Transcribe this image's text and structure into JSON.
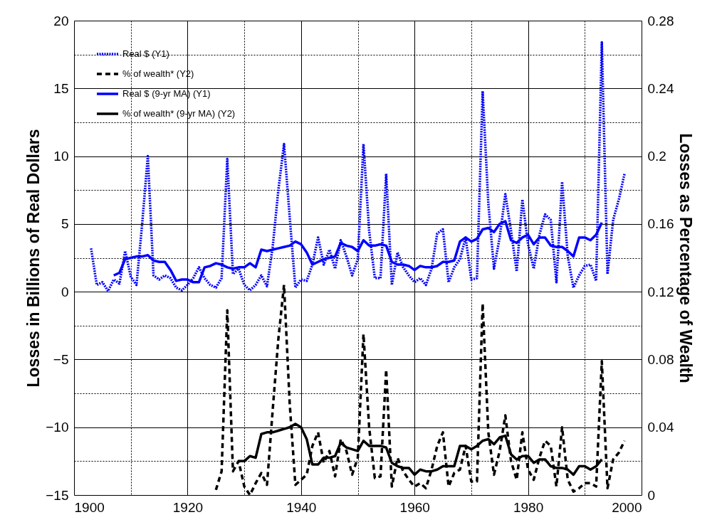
{
  "chart_data": {
    "type": "line",
    "ylabel": "Losses in Billions of Real Dollars",
    "y2label": "Losses as Percentage of Wealth",
    "xlim": [
      1900,
      2000
    ],
    "xticks": [
      1900,
      {
        "value": 1910,
        "label": null
      },
      1920,
      {
        "value": 1930,
        "label": null
      },
      1940,
      {
        "value": 1950,
        "label": null
      },
      1960,
      {
        "value": 1970,
        "label": null
      },
      1980,
      {
        "value": 1990,
        "label": null
      },
      2000
    ],
    "ylim": [
      -15,
      20
    ],
    "yticks": [
      -15,
      {
        "value": -12.5,
        "label": null
      },
      -10,
      {
        "value": -7.5,
        "label": null
      },
      -5,
      {
        "value": -2.5,
        "label": null
      },
      0,
      {
        "value": 2.5,
        "label": null
      },
      5,
      {
        "value": 7.5,
        "label": null
      },
      10,
      {
        "value": 12.5,
        "label": null
      },
      15,
      {
        "value": 17.5,
        "label": null
      },
      20
    ],
    "y2lim": [
      0,
      0.28
    ],
    "y2ticks": [
      0,
      0.04,
      0.08,
      0.12,
      0.16,
      0.2,
      0.24,
      0.28
    ],
    "grid": true,
    "legend": "top left",
    "series": [
      {
        "name": "Real $ (Y1)",
        "color": "#0000ff",
        "line_style": "dotted",
        "x": [
          1903,
          1904,
          1905,
          1906,
          1907,
          1908,
          1909,
          1910,
          1911,
          1912,
          1913,
          1914,
          1915,
          1916,
          1917,
          1918,
          1919,
          1920,
          1921,
          1922,
          1923,
          1924,
          1925,
          1926,
          1927,
          1928,
          1929,
          1930,
          1931,
          1932,
          1933,
          1934,
          1935,
          1936,
          1937,
          1938,
          1939,
          1940,
          1941,
          1942,
          1943,
          1944,
          1945,
          1946,
          1947,
          1948,
          1949,
          1950,
          1951,
          1952,
          1953,
          1954,
          1955,
          1956,
          1957,
          1958,
          1959,
          1960,
          1961,
          1962,
          1963,
          1964,
          1965,
          1966,
          1967,
          1968,
          1969,
          1970,
          1971,
          1972,
          1973,
          1974,
          1975,
          1976,
          1977,
          1978,
          1979,
          1980,
          1981,
          1982,
          1983,
          1984,
          1985,
          1986,
          1987,
          1988,
          1989,
          1990,
          1991,
          1992,
          1993,
          1994,
          1995,
          1996,
          1997
        ],
        "values": [
          3.2,
          0.5,
          0.7,
          0.05,
          0.9,
          0.6,
          3.0,
          1.1,
          0.5,
          5.0,
          10.0,
          1.2,
          0.9,
          1.2,
          1.0,
          0.3,
          0.1,
          0.5,
          1.0,
          1.8,
          1.0,
          0.5,
          0.3,
          1.0,
          9.8,
          1.3,
          1.7,
          0.5,
          0.1,
          0.5,
          1.2,
          0.4,
          3.3,
          7.5,
          10.9,
          5.5,
          0.3,
          0.9,
          0.8,
          2.0,
          4.0,
          2.0,
          3.1,
          1.7,
          3.8,
          2.6,
          1.2,
          2.4,
          10.9,
          4.5,
          1.0,
          1.0,
          8.7,
          0.5,
          2.9,
          1.8,
          1.2,
          0.7,
          1.0,
          0.5,
          1.7,
          4.3,
          4.6,
          0.7,
          1.8,
          2.4,
          4.0,
          0.9,
          1.0,
          14.8,
          6.5,
          1.7,
          4.0,
          7.2,
          4.5,
          1.5,
          6.8,
          3.5,
          1.7,
          4.2,
          5.7,
          5.3,
          0.7,
          8.1,
          2.6,
          0.3,
          1.2,
          1.9,
          2.0,
          0.8,
          18.4,
          1.3,
          5.3,
          6.8,
          8.7
        ]
      },
      {
        "name": "% of wealth* (Y2)",
        "color": "#000000",
        "line_style": "dashed",
        "axis": "y2",
        "x": [
          1925,
          1926,
          1927,
          1928,
          1929,
          1930,
          1931,
          1932,
          1933,
          1934,
          1935,
          1936,
          1937,
          1938,
          1939,
          1940,
          1941,
          1942,
          1943,
          1944,
          1945,
          1946,
          1947,
          1948,
          1949,
          1950,
          1951,
          1952,
          1953,
          1954,
          1955,
          1956,
          1957,
          1958,
          1959,
          1960,
          1961,
          1962,
          1963,
          1964,
          1965,
          1966,
          1967,
          1968,
          1969,
          1970,
          1971,
          1972,
          1973,
          1974,
          1975,
          1976,
          1977,
          1978,
          1979,
          1980,
          1981,
          1982,
          1983,
          1984,
          1985,
          1986,
          1987,
          1988,
          1989,
          1990,
          1991,
          1992,
          1993,
          1994,
          1995,
          1996,
          1997
        ],
        "values": [
          0.003,
          0.014,
          0.109,
          0.014,
          0.02,
          0.005,
          0.0,
          0.007,
          0.013,
          0.006,
          0.05,
          0.092,
          0.124,
          0.054,
          0.006,
          0.009,
          0.012,
          0.029,
          0.037,
          0.019,
          0.026,
          0.011,
          0.033,
          0.026,
          0.012,
          0.022,
          0.095,
          0.04,
          0.01,
          0.011,
          0.074,
          0.005,
          0.022,
          0.014,
          0.009,
          0.005,
          0.007,
          0.004,
          0.015,
          0.029,
          0.037,
          0.005,
          0.013,
          0.015,
          0.029,
          0.008,
          0.008,
          0.113,
          0.037,
          0.012,
          0.026,
          0.047,
          0.02,
          0.009,
          0.037,
          0.015,
          0.009,
          0.022,
          0.032,
          0.029,
          0.005,
          0.04,
          0.009,
          0.002,
          0.004,
          0.007,
          0.007,
          0.005,
          0.079,
          0.004,
          0.021,
          0.025,
          0.032
        ]
      },
      {
        "name": "Real $ (9-yr MA) (Y1)",
        "color": "#0000ff",
        "line_style": "solid",
        "x": [
          1907,
          1908,
          1909,
          1910,
          1911,
          1912,
          1913,
          1914,
          1915,
          1916,
          1917,
          1918,
          1919,
          1920,
          1921,
          1922,
          1923,
          1924,
          1925,
          1926,
          1927,
          1928,
          1929,
          1930,
          1931,
          1932,
          1933,
          1934,
          1935,
          1936,
          1937,
          1938,
          1939,
          1940,
          1941,
          1942,
          1943,
          1944,
          1945,
          1946,
          1947,
          1948,
          1949,
          1950,
          1951,
          1952,
          1953,
          1954,
          1955,
          1956,
          1957,
          1958,
          1959,
          1960,
          1961,
          1962,
          1963,
          1964,
          1965,
          1966,
          1967,
          1968,
          1969,
          1970,
          1971,
          1972,
          1973,
          1974,
          1975,
          1976,
          1977,
          1978,
          1979,
          1980,
          1981,
          1982,
          1983,
          1984,
          1985,
          1986,
          1987,
          1988,
          1989,
          1990,
          1991,
          1992,
          1993
        ],
        "values": [
          1.2,
          1.4,
          2.4,
          2.5,
          2.6,
          2.6,
          2.7,
          2.3,
          2.2,
          2.2,
          1.6,
          0.8,
          0.9,
          0.9,
          0.7,
          0.7,
          1.8,
          1.9,
          2.1,
          2.0,
          1.8,
          1.7,
          1.8,
          1.8,
          2.1,
          1.8,
          3.1,
          3.0,
          3.1,
          3.2,
          3.3,
          3.4,
          3.7,
          3.5,
          2.9,
          2.0,
          2.2,
          2.4,
          2.5,
          2.6,
          3.6,
          3.4,
          3.3,
          3.0,
          3.8,
          3.4,
          3.4,
          3.5,
          3.4,
          2.2,
          2.0,
          2.0,
          1.9,
          1.6,
          1.9,
          1.8,
          1.8,
          1.9,
          2.2,
          2.2,
          2.3,
          3.7,
          4.0,
          3.7,
          3.9,
          4.6,
          4.7,
          4.4,
          5.0,
          5.2,
          3.8,
          3.6,
          4.0,
          4.2,
          3.5,
          4.0,
          4.0,
          3.4,
          3.3,
          3.3,
          3.0,
          2.6,
          4.0,
          4.0,
          3.8,
          4.2,
          5.1
        ]
      },
      {
        "name": "% of wealth* (9-yr MA) (Y2)",
        "color": "#000000",
        "line_style": "solid",
        "axis": "y2",
        "x": [
          1929,
          1930,
          1931,
          1932,
          1933,
          1934,
          1935,
          1936,
          1937,
          1938,
          1939,
          1940,
          1941,
          1942,
          1943,
          1944,
          1945,
          1946,
          1947,
          1948,
          1949,
          1950,
          1951,
          1952,
          1953,
          1954,
          1955,
          1956,
          1957,
          1958,
          1959,
          1960,
          1961,
          1962,
          1963,
          1964,
          1965,
          1966,
          1967,
          1968,
          1969,
          1970,
          1971,
          1972,
          1973,
          1974,
          1975,
          1976,
          1977,
          1978,
          1979,
          1980,
          1981,
          1982,
          1983,
          1984,
          1985,
          1986,
          1987,
          1988,
          1989,
          1990,
          1991,
          1992,
          1993
        ],
        "values": [
          0.02,
          0.02,
          0.023,
          0.022,
          0.036,
          0.037,
          0.037,
          0.038,
          0.039,
          0.04,
          0.042,
          0.04,
          0.033,
          0.018,
          0.018,
          0.022,
          0.022,
          0.023,
          0.031,
          0.028,
          0.027,
          0.026,
          0.032,
          0.029,
          0.029,
          0.029,
          0.028,
          0.019,
          0.017,
          0.016,
          0.016,
          0.012,
          0.015,
          0.014,
          0.014,
          0.015,
          0.017,
          0.017,
          0.017,
          0.029,
          0.029,
          0.027,
          0.029,
          0.032,
          0.033,
          0.03,
          0.034,
          0.035,
          0.024,
          0.021,
          0.023,
          0.023,
          0.019,
          0.021,
          0.021,
          0.017,
          0.016,
          0.016,
          0.015,
          0.012,
          0.017,
          0.017,
          0.015,
          0.017,
          0.021
        ]
      }
    ]
  }
}
